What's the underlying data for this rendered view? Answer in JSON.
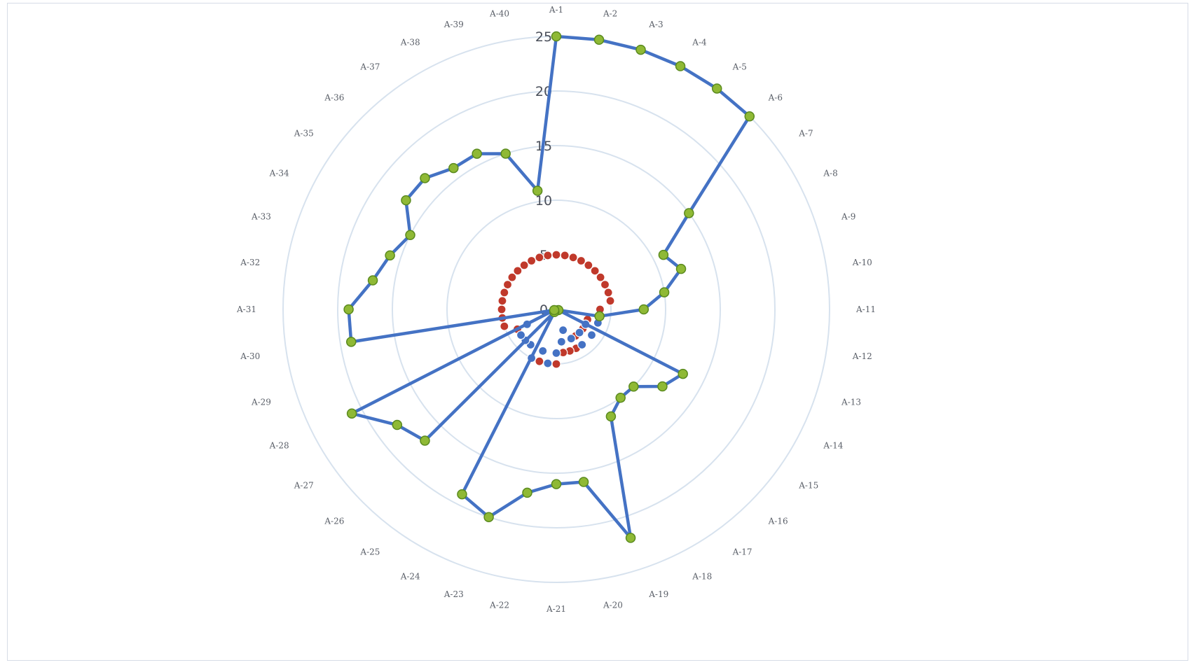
{
  "chart_data": {
    "type": "radar",
    "title": "",
    "radial_ticks": [
      "0",
      "5",
      "10",
      "15",
      "20",
      "25"
    ],
    "rlim": [
      0,
      25
    ],
    "grid": true,
    "categories": [
      "A-1",
      "A-2",
      "A-3",
      "A-4",
      "A-5",
      "A-6",
      "A-7",
      "A-8",
      "A-9",
      "A-10",
      "A-11",
      "A-12",
      "A-13",
      "A-14",
      "A-15",
      "A-16",
      "A-17",
      "A-18",
      "A-19",
      "A-20",
      "A-21",
      "A-22",
      "A-23",
      "A-24",
      "A-25",
      "A-26",
      "A-27",
      "A-28",
      "A-29",
      "A-30",
      "A-31",
      "A-32",
      "A-33",
      "A-34",
      "A-35",
      "A-36",
      "A-37",
      "A-38",
      "A-39",
      "A-40"
    ],
    "series": [
      {
        "color": "#4472c4",
        "marker_color": "#8fb935",
        "marker_outline": "#5a8a1e",
        "connected": true,
        "values": [
          25,
          25,
          25,
          25,
          25,
          25,
          15,
          11,
          12,
          10,
          8,
          4,
          0.2,
          13,
          12,
          10,
          10,
          11,
          22,
          16,
          16,
          17,
          20,
          19,
          0.3,
          17,
          18,
          21,
          0.2,
          19,
          19,
          17,
          16,
          15,
          17,
          17,
          16,
          16,
          15,
          11
        ]
      },
      {
        "color": "#c0392b",
        "marker_outline": "#ffffff",
        "connected": false,
        "values": [
          5,
          5,
          5,
          5,
          5,
          5,
          5,
          5,
          5,
          5,
          4,
          4,
          3,
          3,
          3,
          3,
          3,
          4,
          4,
          4,
          5,
          5,
          5,
          5,
          4,
          4,
          4,
          4,
          5,
          5,
          5,
          5,
          5,
          5,
          5,
          5,
          5,
          5,
          5,
          5
        ]
      },
      {
        "color": "#4472c4",
        "marker_outline": "#ffffff",
        "connected": false,
        "values": [
          0,
          0,
          0,
          0,
          0,
          0,
          0,
          0,
          0,
          0,
          0,
          0,
          4,
          3,
          4,
          3,
          4,
          3,
          2,
          3,
          4,
          5,
          4,
          5,
          4,
          4,
          4,
          3,
          0,
          0,
          0,
          0,
          0,
          0,
          0,
          0,
          0,
          0,
          0,
          0
        ]
      }
    ]
  }
}
